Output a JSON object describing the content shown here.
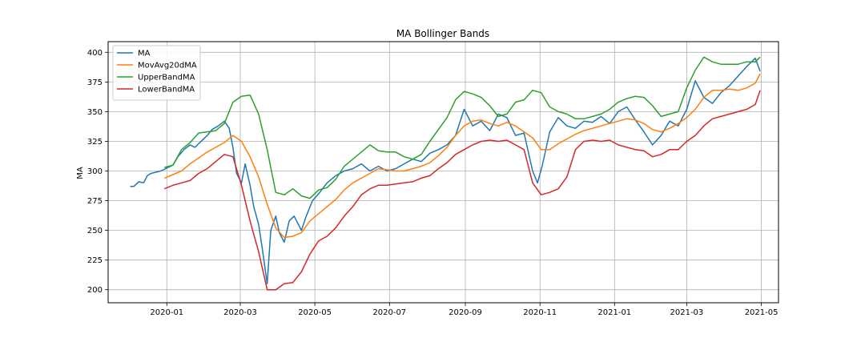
{
  "chart_data": {
    "type": "line",
    "title": "MA Bollinger Bands",
    "xlabel": "",
    "ylabel": "MA",
    "xlim": [
      "2019-11-14",
      "2021-05-15"
    ],
    "ylim": [
      189,
      409
    ],
    "grid": true,
    "legend_position": "upper-left",
    "x_ticks": [
      "2020-01-01",
      "2020-03-01",
      "2020-05-01",
      "2020-07-01",
      "2020-09-01",
      "2020-11-01",
      "2021-01-01",
      "2021-03-01",
      "2021-05-01"
    ],
    "x_tick_labels": [
      "2020-01",
      "2020-03",
      "2020-05",
      "2020-07",
      "2020-09",
      "2020-11",
      "2021-01",
      "2021-03",
      "2021-05"
    ],
    "y_ticks": [
      200,
      225,
      250,
      275,
      300,
      325,
      350,
      375,
      400
    ],
    "series": [
      {
        "name": "MA",
        "color": "#1f77b4",
        "x": [
          "2019-12-02",
          "2019-12-05",
          "2019-12-09",
          "2019-12-13",
          "2019-12-16",
          "2019-12-19",
          "2019-12-23",
          "2019-12-27",
          "2019-12-31",
          "2020-01-06",
          "2020-01-10",
          "2020-01-15",
          "2020-01-20",
          "2020-01-24",
          "2020-01-29",
          "2020-02-03",
          "2020-02-07",
          "2020-02-12",
          "2020-02-17",
          "2020-02-21",
          "2020-02-24",
          "2020-02-27",
          "2020-03-02",
          "2020-03-05",
          "2020-03-09",
          "2020-03-12",
          "2020-03-16",
          "2020-03-19",
          "2020-03-23",
          "2020-03-26",
          "2020-03-30",
          "2020-04-02",
          "2020-04-06",
          "2020-04-10",
          "2020-04-14",
          "2020-04-20",
          "2020-04-24",
          "2020-04-29",
          "2020-05-05",
          "2020-05-11",
          "2020-05-18",
          "2020-05-25",
          "2020-06-01",
          "2020-06-08",
          "2020-06-15",
          "2020-06-22",
          "2020-06-29",
          "2020-07-06",
          "2020-07-13",
          "2020-07-20",
          "2020-07-27",
          "2020-08-03",
          "2020-08-10",
          "2020-08-17",
          "2020-08-24",
          "2020-08-31",
          "2020-09-07",
          "2020-09-14",
          "2020-09-21",
          "2020-09-28",
          "2020-10-05",
          "2020-10-12",
          "2020-10-19",
          "2020-10-26",
          "2020-10-30",
          "2020-11-03",
          "2020-11-09",
          "2020-11-16",
          "2020-11-23",
          "2020-11-30",
          "2020-12-07",
          "2020-12-14",
          "2020-12-21",
          "2020-12-28",
          "2021-01-04",
          "2021-01-11",
          "2021-01-18",
          "2021-01-25",
          "2021-02-01",
          "2021-02-08",
          "2021-02-15",
          "2021-02-22",
          "2021-03-01",
          "2021-03-08",
          "2021-03-15",
          "2021-03-22",
          "2021-03-29",
          "2021-04-05",
          "2021-04-12",
          "2021-04-19",
          "2021-04-26",
          "2021-04-30"
        ],
        "values": [
          287,
          287,
          291,
          290,
          296,
          298,
          299,
          300,
          302,
          305,
          312,
          318,
          322,
          320,
          325,
          330,
          335,
          338,
          342,
          336,
          320,
          298,
          290,
          306,
          288,
          270,
          255,
          235,
          205,
          250,
          262,
          248,
          240,
          258,
          262,
          250,
          262,
          275,
          282,
          290,
          296,
          300,
          302,
          306,
          300,
          304,
          300,
          302,
          306,
          310,
          308,
          315,
          318,
          322,
          330,
          352,
          338,
          342,
          334,
          348,
          345,
          330,
          332,
          300,
          290,
          305,
          333,
          345,
          338,
          336,
          342,
          341,
          346,
          340,
          350,
          354,
          343,
          333,
          322,
          330,
          342,
          338,
          352,
          376,
          362,
          357,
          366,
          372,
          380,
          388,
          395,
          384
        ]
      },
      {
        "name": "MovAvg20dMA",
        "color": "#ff7f0e",
        "x": [
          "2019-12-30",
          "2020-01-06",
          "2020-01-13",
          "2020-01-20",
          "2020-01-27",
          "2020-02-03",
          "2020-02-10",
          "2020-02-17",
          "2020-02-24",
          "2020-03-02",
          "2020-03-09",
          "2020-03-16",
          "2020-03-23",
          "2020-03-30",
          "2020-04-06",
          "2020-04-13",
          "2020-04-20",
          "2020-04-27",
          "2020-05-04",
          "2020-05-11",
          "2020-05-18",
          "2020-05-25",
          "2020-06-01",
          "2020-06-08",
          "2020-06-15",
          "2020-06-22",
          "2020-06-29",
          "2020-07-06",
          "2020-07-13",
          "2020-07-20",
          "2020-07-27",
          "2020-08-03",
          "2020-08-10",
          "2020-08-17",
          "2020-08-24",
          "2020-08-31",
          "2020-09-07",
          "2020-09-14",
          "2020-09-21",
          "2020-09-28",
          "2020-10-05",
          "2020-10-12",
          "2020-10-19",
          "2020-10-26",
          "2020-11-02",
          "2020-11-09",
          "2020-11-16",
          "2020-11-23",
          "2020-11-30",
          "2020-12-07",
          "2020-12-14",
          "2020-12-21",
          "2020-12-28",
          "2021-01-04",
          "2021-01-11",
          "2021-01-18",
          "2021-01-25",
          "2021-02-01",
          "2021-02-08",
          "2021-02-15",
          "2021-02-22",
          "2021-03-01",
          "2021-03-08",
          "2021-03-15",
          "2021-03-22",
          "2021-03-29",
          "2021-04-05",
          "2021-04-12",
          "2021-04-19",
          "2021-04-26",
          "2021-04-30"
        ],
        "values": [
          294,
          297,
          300,
          306,
          311,
          316,
          320,
          324,
          330,
          325,
          312,
          295,
          272,
          252,
          244,
          245,
          248,
          258,
          264,
          270,
          276,
          284,
          290,
          294,
          298,
          302,
          301,
          300,
          300,
          302,
          304,
          307,
          313,
          320,
          330,
          338,
          342,
          343,
          340,
          338,
          341,
          338,
          333,
          328,
          318,
          318,
          323,
          327,
          331,
          334,
          336,
          338,
          340,
          342,
          344,
          343,
          340,
          335,
          333,
          336,
          340,
          345,
          352,
          362,
          368,
          368,
          369,
          368,
          370,
          374,
          382
        ]
      },
      {
        "name": "UpperBandMA",
        "color": "#2ca02c",
        "x": [
          "2019-12-30",
          "2020-01-06",
          "2020-01-13",
          "2020-01-20",
          "2020-01-27",
          "2020-02-03",
          "2020-02-10",
          "2020-02-17",
          "2020-02-24",
          "2020-03-02",
          "2020-03-09",
          "2020-03-16",
          "2020-03-23",
          "2020-03-30",
          "2020-04-06",
          "2020-04-13",
          "2020-04-20",
          "2020-04-27",
          "2020-05-04",
          "2020-05-11",
          "2020-05-18",
          "2020-05-25",
          "2020-06-01",
          "2020-06-08",
          "2020-06-15",
          "2020-06-22",
          "2020-06-29",
          "2020-07-06",
          "2020-07-13",
          "2020-07-20",
          "2020-07-27",
          "2020-08-03",
          "2020-08-10",
          "2020-08-17",
          "2020-08-24",
          "2020-08-31",
          "2020-09-07",
          "2020-09-14",
          "2020-09-21",
          "2020-09-28",
          "2020-10-05",
          "2020-10-12",
          "2020-10-19",
          "2020-10-26",
          "2020-11-02",
          "2020-11-09",
          "2020-11-16",
          "2020-11-23",
          "2020-11-30",
          "2020-12-07",
          "2020-12-14",
          "2020-12-21",
          "2020-12-28",
          "2021-01-04",
          "2021-01-11",
          "2021-01-18",
          "2021-01-25",
          "2021-02-01",
          "2021-02-08",
          "2021-02-15",
          "2021-02-22",
          "2021-03-01",
          "2021-03-08",
          "2021-03-15",
          "2021-03-22",
          "2021-03-29",
          "2021-04-05",
          "2021-04-12",
          "2021-04-19",
          "2021-04-26",
          "2021-04-30"
        ],
        "values": [
          303,
          305,
          318,
          324,
          332,
          333,
          334,
          340,
          358,
          363,
          364,
          348,
          318,
          282,
          280,
          285,
          279,
          277,
          284,
          286,
          293,
          304,
          310,
          316,
          322,
          317,
          316,
          316,
          312,
          310,
          314,
          325,
          335,
          345,
          360,
          367,
          365,
          362,
          355,
          346,
          348,
          358,
          360,
          368,
          366,
          354,
          350,
          348,
          344,
          344,
          346,
          348,
          352,
          358,
          361,
          363,
          362,
          355,
          346,
          348,
          350,
          370,
          385,
          396,
          392,
          390,
          390,
          390,
          392,
          392,
          396
        ]
      },
      {
        "name": "LowerBandMA",
        "color": "#d62728",
        "x": [
          "2019-12-30",
          "2020-01-06",
          "2020-01-13",
          "2020-01-20",
          "2020-01-27",
          "2020-02-03",
          "2020-02-10",
          "2020-02-17",
          "2020-02-24",
          "2020-03-02",
          "2020-03-09",
          "2020-03-16",
          "2020-03-23",
          "2020-03-30",
          "2020-04-06",
          "2020-04-13",
          "2020-04-20",
          "2020-04-27",
          "2020-05-04",
          "2020-05-11",
          "2020-05-18",
          "2020-05-25",
          "2020-06-01",
          "2020-06-08",
          "2020-06-15",
          "2020-06-22",
          "2020-06-29",
          "2020-07-06",
          "2020-07-13",
          "2020-07-20",
          "2020-07-27",
          "2020-08-03",
          "2020-08-10",
          "2020-08-17",
          "2020-08-24",
          "2020-08-31",
          "2020-09-07",
          "2020-09-14",
          "2020-09-21",
          "2020-09-28",
          "2020-10-05",
          "2020-10-12",
          "2020-10-19",
          "2020-10-26",
          "2020-11-02",
          "2020-11-09",
          "2020-11-16",
          "2020-11-23",
          "2020-11-30",
          "2020-12-07",
          "2020-12-14",
          "2020-12-21",
          "2020-12-28",
          "2021-01-04",
          "2021-01-11",
          "2021-01-18",
          "2021-01-25",
          "2021-02-01",
          "2021-02-08",
          "2021-02-15",
          "2021-02-22",
          "2021-03-01",
          "2021-03-08",
          "2021-03-15",
          "2021-03-22",
          "2021-03-29",
          "2021-04-05",
          "2021-04-12",
          "2021-04-19",
          "2021-04-26",
          "2021-04-30"
        ],
        "values": [
          285,
          288,
          290,
          292,
          298,
          302,
          308,
          314,
          312,
          288,
          258,
          232,
          200,
          200,
          205,
          206,
          215,
          230,
          241,
          245,
          252,
          262,
          270,
          280,
          285,
          288,
          288,
          289,
          290,
          291,
          294,
          296,
          302,
          307,
          314,
          318,
          322,
          325,
          326,
          325,
          326,
          322,
          318,
          290,
          280,
          282,
          285,
          295,
          318,
          325,
          326,
          325,
          326,
          322,
          320,
          318,
          317,
          312,
          314,
          318,
          318,
          325,
          330,
          338,
          344,
          346,
          348,
          350,
          352,
          356,
          368
        ]
      }
    ]
  }
}
